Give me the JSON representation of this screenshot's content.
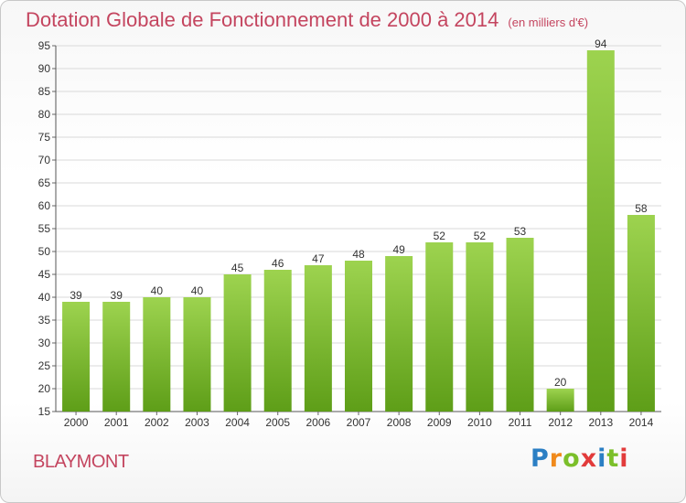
{
  "title": "Dotation Globale de Fonctionnement de 2000 à 2014",
  "unit": "(en milliers d'€)",
  "commune": "BLAYMONT",
  "logo": "Proxiti",
  "colors": {
    "title": "#c4455f",
    "bar_top": "#9dd34f",
    "bar_bottom": "#5e9e18",
    "grid": "#d9d9d9",
    "logo": [
      "#2b7fc4",
      "#f08a1c",
      "#7bbf2a",
      "#e23b3b",
      "#2b7fc4",
      "#7bbf2a",
      "#e23b3b"
    ]
  },
  "chart_data": {
    "type": "bar",
    "categories": [
      "2000",
      "2001",
      "2002",
      "2003",
      "2004",
      "2005",
      "2006",
      "2007",
      "2008",
      "2009",
      "2010",
      "2011",
      "2012",
      "2013",
      "2014"
    ],
    "values": [
      39,
      39,
      40,
      40,
      45,
      46,
      47,
      48,
      49,
      52,
      52,
      53,
      20,
      94,
      58
    ],
    "title": "Dotation Globale de Fonctionnement de 2000 à 2014",
    "xlabel": "",
    "ylabel": "",
    "ylim": [
      15,
      95
    ],
    "yticks": [
      15,
      20,
      25,
      30,
      35,
      40,
      45,
      50,
      55,
      60,
      65,
      70,
      75,
      80,
      85,
      90,
      95
    ],
    "grid": true,
    "data_labels": true
  }
}
